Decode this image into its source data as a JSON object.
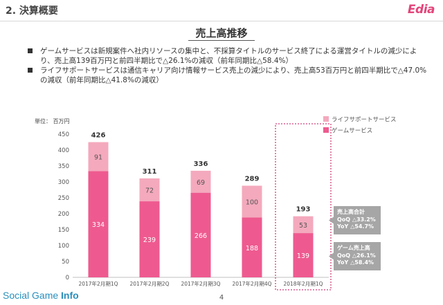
{
  "header": {
    "section_title": "2. 決算概要",
    "logo": "Edia"
  },
  "slide_title": "売上高推移",
  "bullets": [
    "ゲームサービスは新規案件へ社内リソースの集中と、不採算タイトルのサービス終了による運営タイトルの減少により、売上高139百万円と前四半期比で△26.1%の減収（前年同期比△58.4%）",
    "ライフサポートサービスは通信キャリア向け情報サービス売上の減少により、売上高53百万円と前四半期比で△47.0%の減収（前年同期比△41.8%の減収）"
  ],
  "chart_data": {
    "type": "bar",
    "stacked": true,
    "unit_label": "単位： 百万円",
    "categories": [
      "2017年2月期1Q",
      "2017年2月期2Q",
      "2017年2月期3Q",
      "2017年2月期4Q",
      "2018年2月期1Q"
    ],
    "series": [
      {
        "name": "ゲームサービス",
        "values": [
          334,
          239,
          266,
          188,
          139
        ],
        "color": "#ee5a8f"
      },
      {
        "name": "ライフサポートサービス",
        "values": [
          91,
          72,
          69,
          100,
          53
        ],
        "color": "#f4a9bd"
      }
    ],
    "totals": [
      426,
      311,
      336,
      289,
      193
    ],
    "ylim": [
      0,
      450
    ],
    "yticks": [
      0,
      50,
      100,
      150,
      200,
      250,
      300,
      350,
      400,
      450
    ],
    "grid": false,
    "legend_position": "top-right",
    "highlight_category": "2018年2月期1Q",
    "highlight_color": "#d1407a",
    "callouts": [
      {
        "title": "売上高合計",
        "lines": [
          "QoQ △33.2%",
          "YoY △54.7%"
        ]
      },
      {
        "title": "ゲーム売上高",
        "lines": [
          "QoQ △26.1%",
          "YoY △58.4%"
        ]
      }
    ],
    "callout_color": "#a6a6a6"
  },
  "footer": {
    "brand_light": "Social Game ",
    "brand_bold": "Info",
    "page_number": "4"
  }
}
